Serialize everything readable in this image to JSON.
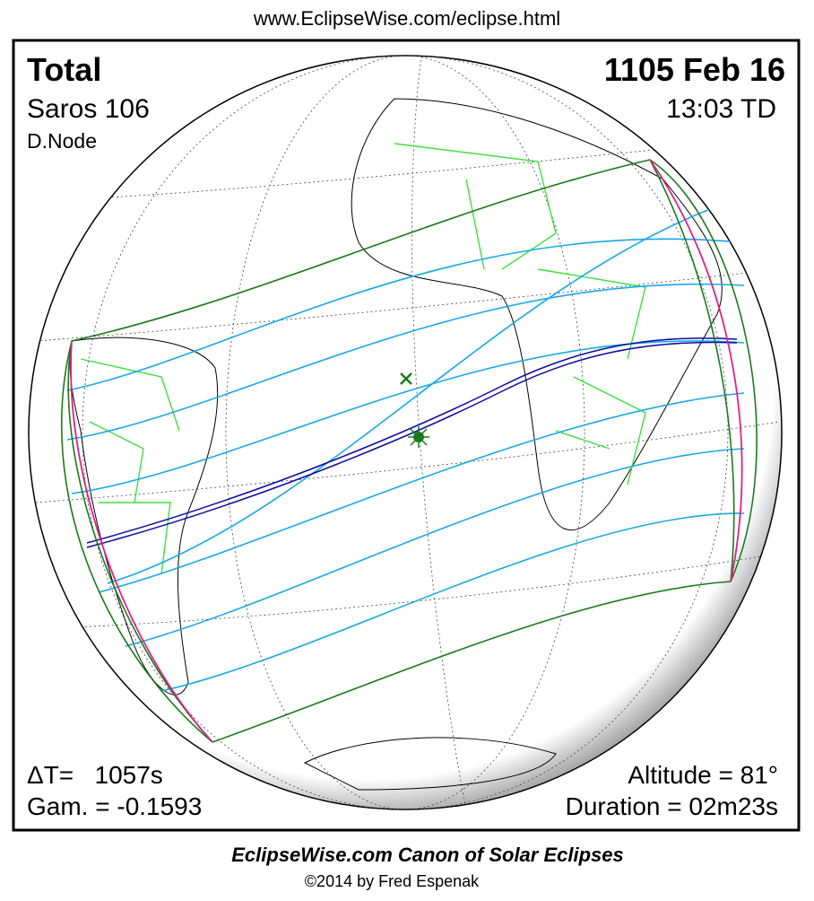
{
  "header": {
    "url": "www.EclipseWise.com/eclipse.html"
  },
  "panel": {
    "type": "Total",
    "date": "1105 Feb 16",
    "saros": "Saros 106",
    "time": "13:03 TD",
    "node": "D.Node",
    "delta_t": "ΔT=   1057s",
    "gamma": "Gam. = -0.1593",
    "altitude": "Altitude = 81°",
    "duration": "Duration = 02m23s"
  },
  "footer": {
    "title": "EclipseWise.com Canon of Solar Eclipses",
    "copyright": "©2014 by Fred Espenak"
  }
}
